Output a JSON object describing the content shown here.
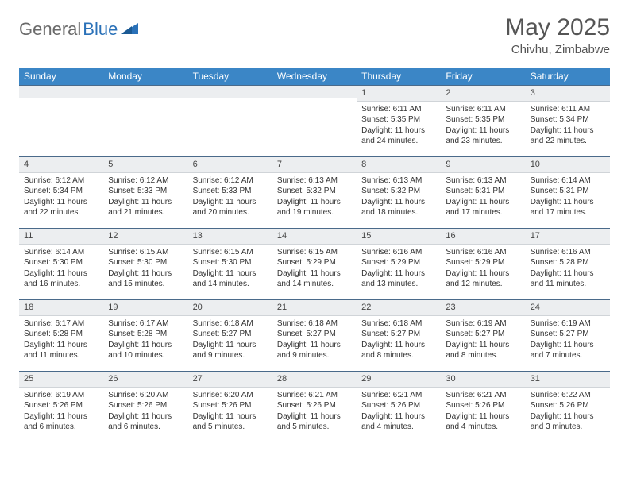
{
  "logo": {
    "part1": "General",
    "part2": "Blue"
  },
  "title": "May 2025",
  "subtitle": "Chivhu, Zimbabwe",
  "colors": {
    "header_bg": "#3b86c6",
    "header_text": "#ffffff",
    "daynum_bg": "#eceef0",
    "daynum_border_top": "#4a6a8a",
    "body_text": "#333333",
    "logo_gray": "#6a6a6a",
    "logo_blue": "#2a71b8"
  },
  "fonts": {
    "title_size": 30,
    "subtitle_size": 15,
    "weekday_size": 12,
    "daynum_size": 11,
    "cell_size": 10
  },
  "weekdays": [
    "Sunday",
    "Monday",
    "Tuesday",
    "Wednesday",
    "Thursday",
    "Friday",
    "Saturday"
  ],
  "weeks": [
    [
      {
        "n": "",
        "sr": "",
        "ss": "",
        "dl": ""
      },
      {
        "n": "",
        "sr": "",
        "ss": "",
        "dl": ""
      },
      {
        "n": "",
        "sr": "",
        "ss": "",
        "dl": ""
      },
      {
        "n": "",
        "sr": "",
        "ss": "",
        "dl": ""
      },
      {
        "n": "1",
        "sr": "Sunrise: 6:11 AM",
        "ss": "Sunset: 5:35 PM",
        "dl": "Daylight: 11 hours and 24 minutes."
      },
      {
        "n": "2",
        "sr": "Sunrise: 6:11 AM",
        "ss": "Sunset: 5:35 PM",
        "dl": "Daylight: 11 hours and 23 minutes."
      },
      {
        "n": "3",
        "sr": "Sunrise: 6:11 AM",
        "ss": "Sunset: 5:34 PM",
        "dl": "Daylight: 11 hours and 22 minutes."
      }
    ],
    [
      {
        "n": "4",
        "sr": "Sunrise: 6:12 AM",
        "ss": "Sunset: 5:34 PM",
        "dl": "Daylight: 11 hours and 22 minutes."
      },
      {
        "n": "5",
        "sr": "Sunrise: 6:12 AM",
        "ss": "Sunset: 5:33 PM",
        "dl": "Daylight: 11 hours and 21 minutes."
      },
      {
        "n": "6",
        "sr": "Sunrise: 6:12 AM",
        "ss": "Sunset: 5:33 PM",
        "dl": "Daylight: 11 hours and 20 minutes."
      },
      {
        "n": "7",
        "sr": "Sunrise: 6:13 AM",
        "ss": "Sunset: 5:32 PM",
        "dl": "Daylight: 11 hours and 19 minutes."
      },
      {
        "n": "8",
        "sr": "Sunrise: 6:13 AM",
        "ss": "Sunset: 5:32 PM",
        "dl": "Daylight: 11 hours and 18 minutes."
      },
      {
        "n": "9",
        "sr": "Sunrise: 6:13 AM",
        "ss": "Sunset: 5:31 PM",
        "dl": "Daylight: 11 hours and 17 minutes."
      },
      {
        "n": "10",
        "sr": "Sunrise: 6:14 AM",
        "ss": "Sunset: 5:31 PM",
        "dl": "Daylight: 11 hours and 17 minutes."
      }
    ],
    [
      {
        "n": "11",
        "sr": "Sunrise: 6:14 AM",
        "ss": "Sunset: 5:30 PM",
        "dl": "Daylight: 11 hours and 16 minutes."
      },
      {
        "n": "12",
        "sr": "Sunrise: 6:15 AM",
        "ss": "Sunset: 5:30 PM",
        "dl": "Daylight: 11 hours and 15 minutes."
      },
      {
        "n": "13",
        "sr": "Sunrise: 6:15 AM",
        "ss": "Sunset: 5:30 PM",
        "dl": "Daylight: 11 hours and 14 minutes."
      },
      {
        "n": "14",
        "sr": "Sunrise: 6:15 AM",
        "ss": "Sunset: 5:29 PM",
        "dl": "Daylight: 11 hours and 14 minutes."
      },
      {
        "n": "15",
        "sr": "Sunrise: 6:16 AM",
        "ss": "Sunset: 5:29 PM",
        "dl": "Daylight: 11 hours and 13 minutes."
      },
      {
        "n": "16",
        "sr": "Sunrise: 6:16 AM",
        "ss": "Sunset: 5:29 PM",
        "dl": "Daylight: 11 hours and 12 minutes."
      },
      {
        "n": "17",
        "sr": "Sunrise: 6:16 AM",
        "ss": "Sunset: 5:28 PM",
        "dl": "Daylight: 11 hours and 11 minutes."
      }
    ],
    [
      {
        "n": "18",
        "sr": "Sunrise: 6:17 AM",
        "ss": "Sunset: 5:28 PM",
        "dl": "Daylight: 11 hours and 11 minutes."
      },
      {
        "n": "19",
        "sr": "Sunrise: 6:17 AM",
        "ss": "Sunset: 5:28 PM",
        "dl": "Daylight: 11 hours and 10 minutes."
      },
      {
        "n": "20",
        "sr": "Sunrise: 6:18 AM",
        "ss": "Sunset: 5:27 PM",
        "dl": "Daylight: 11 hours and 9 minutes."
      },
      {
        "n": "21",
        "sr": "Sunrise: 6:18 AM",
        "ss": "Sunset: 5:27 PM",
        "dl": "Daylight: 11 hours and 9 minutes."
      },
      {
        "n": "22",
        "sr": "Sunrise: 6:18 AM",
        "ss": "Sunset: 5:27 PM",
        "dl": "Daylight: 11 hours and 8 minutes."
      },
      {
        "n": "23",
        "sr": "Sunrise: 6:19 AM",
        "ss": "Sunset: 5:27 PM",
        "dl": "Daylight: 11 hours and 8 minutes."
      },
      {
        "n": "24",
        "sr": "Sunrise: 6:19 AM",
        "ss": "Sunset: 5:27 PM",
        "dl": "Daylight: 11 hours and 7 minutes."
      }
    ],
    [
      {
        "n": "25",
        "sr": "Sunrise: 6:19 AM",
        "ss": "Sunset: 5:26 PM",
        "dl": "Daylight: 11 hours and 6 minutes."
      },
      {
        "n": "26",
        "sr": "Sunrise: 6:20 AM",
        "ss": "Sunset: 5:26 PM",
        "dl": "Daylight: 11 hours and 6 minutes."
      },
      {
        "n": "27",
        "sr": "Sunrise: 6:20 AM",
        "ss": "Sunset: 5:26 PM",
        "dl": "Daylight: 11 hours and 5 minutes."
      },
      {
        "n": "28",
        "sr": "Sunrise: 6:21 AM",
        "ss": "Sunset: 5:26 PM",
        "dl": "Daylight: 11 hours and 5 minutes."
      },
      {
        "n": "29",
        "sr": "Sunrise: 6:21 AM",
        "ss": "Sunset: 5:26 PM",
        "dl": "Daylight: 11 hours and 4 minutes."
      },
      {
        "n": "30",
        "sr": "Sunrise: 6:21 AM",
        "ss": "Sunset: 5:26 PM",
        "dl": "Daylight: 11 hours and 4 minutes."
      },
      {
        "n": "31",
        "sr": "Sunrise: 6:22 AM",
        "ss": "Sunset: 5:26 PM",
        "dl": "Daylight: 11 hours and 3 minutes."
      }
    ]
  ]
}
